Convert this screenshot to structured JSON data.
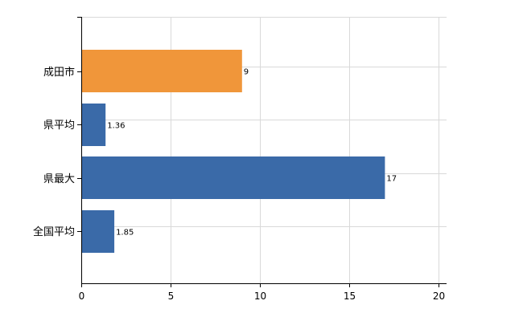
{
  "chart_data": {
    "type": "bar",
    "orientation": "horizontal",
    "categories": [
      "成田市",
      "県平均",
      "県最大",
      "全国平均"
    ],
    "values": [
      9,
      1.36,
      17,
      1.85
    ],
    "data_labels": [
      "9",
      "1.36",
      "17",
      "1.85"
    ],
    "xlim": [
      0,
      20
    ],
    "x_ticks": [
      "0",
      "5",
      "10",
      "15",
      "20"
    ],
    "grid": true,
    "title": "",
    "xlabel": "",
    "ylabel": "",
    "colors": {
      "highlight": "#F0963A",
      "default": "#3A6AA8"
    },
    "bar_colors": [
      "#F0963A",
      "#3A6AA8",
      "#3A6AA8",
      "#3A6AA8"
    ]
  }
}
